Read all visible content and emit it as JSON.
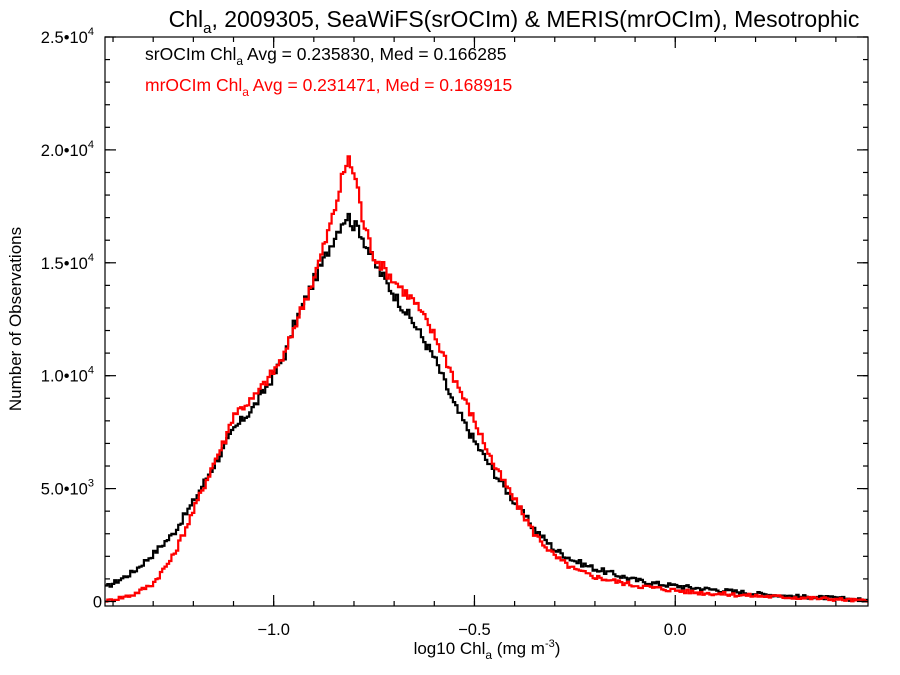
{
  "chart_data": {
    "type": "line",
    "title_parts": [
      "Chl",
      "a",
      ", 2009305, SeaWiFS(srOCIm) & MERIS(mrOCIm), Mesotrophic"
    ],
    "xlabel_parts": [
      "log10 Chl",
      "a",
      " (mg m",
      "-3",
      ")"
    ],
    "ylabel": "Number of Observations",
    "xlim": [
      -1.42,
      0.48
    ],
    "ylim": [
      -200,
      25000
    ],
    "x_ticks": [
      {
        "value": -1.0,
        "label": "−1.0"
      },
      {
        "value": -0.5,
        "label": "−0.5"
      },
      {
        "value": 0.0,
        "label": "0.0"
      }
    ],
    "x_minor_step": 0.1,
    "y_ticks": [
      {
        "value": 0,
        "mant": "0",
        "exp": ""
      },
      {
        "value": 5000,
        "mant": "5.0•10",
        "exp": "3"
      },
      {
        "value": 10000,
        "mant": "1.0•10",
        "exp": "4"
      },
      {
        "value": 15000,
        "mant": "1.5•10",
        "exp": "4"
      },
      {
        "value": 20000,
        "mant": "2.0•10",
        "exp": "4"
      },
      {
        "value": 25000,
        "mant": "2.5•10",
        "exp": "4"
      }
    ],
    "y_minor_step": 1000,
    "annotations": [
      {
        "parts": [
          "srOCIm Chl",
          "a",
          " Avg = 0.235830, Med = 0.166285"
        ],
        "color": "#000000"
      },
      {
        "parts": [
          "mrOCIm Chl",
          "a",
          " Avg = 0.231471, Med = 0.168915"
        ],
        "color": "#ff0000"
      }
    ],
    "series": [
      {
        "color": "#000000",
        "x": [
          -1.42,
          -1.35,
          -1.3,
          -1.25,
          -1.2,
          -1.15,
          -1.12,
          -1.1,
          -1.05,
          -1.0,
          -0.97,
          -0.95,
          -0.9,
          -0.87,
          -0.85,
          -0.83,
          -0.815,
          -0.8,
          -0.79,
          -0.78,
          -0.75,
          -0.7,
          -0.65,
          -0.6,
          -0.55,
          -0.5,
          -0.45,
          -0.4,
          -0.35,
          -0.3,
          -0.25,
          -0.2,
          -0.15,
          -0.1,
          -0.05,
          0.0,
          0.05,
          0.1,
          0.2,
          0.3,
          0.4,
          0.48
        ],
        "y": [
          600,
          1300,
          2100,
          3000,
          4400,
          6000,
          6900,
          7600,
          8600,
          10000,
          11000,
          12200,
          14200,
          15300,
          16100,
          16800,
          17100,
          16600,
          16600,
          16200,
          15000,
          13600,
          12300,
          10800,
          8700,
          7100,
          5700,
          4400,
          3200,
          2300,
          1800,
          1450,
          1200,
          950,
          800,
          700,
          600,
          520,
          350,
          220,
          150,
          50
        ]
      },
      {
        "color": "#ff0000",
        "x": [
          -1.42,
          -1.35,
          -1.3,
          -1.25,
          -1.2,
          -1.15,
          -1.12,
          -1.1,
          -1.05,
          -1.0,
          -0.97,
          -0.95,
          -0.9,
          -0.87,
          -0.85,
          -0.83,
          -0.815,
          -0.8,
          -0.79,
          -0.78,
          -0.75,
          -0.7,
          -0.65,
          -0.6,
          -0.55,
          -0.5,
          -0.45,
          -0.4,
          -0.35,
          -0.3,
          -0.25,
          -0.2,
          -0.15,
          -0.1,
          -0.05,
          0.0,
          0.05,
          0.1,
          0.2,
          0.3,
          0.4,
          0.48
        ],
        "y": [
          0,
          300,
          800,
          2000,
          4000,
          6100,
          7200,
          8300,
          9000,
          10200,
          11000,
          12100,
          14300,
          16000,
          17200,
          18700,
          19600,
          19000,
          18300,
          17000,
          15300,
          14200,
          13300,
          11800,
          9900,
          8000,
          6000,
          4500,
          3000,
          2000,
          1400,
          1100,
          900,
          720,
          600,
          500,
          400,
          350,
          250,
          180,
          100,
          20
        ]
      }
    ]
  }
}
